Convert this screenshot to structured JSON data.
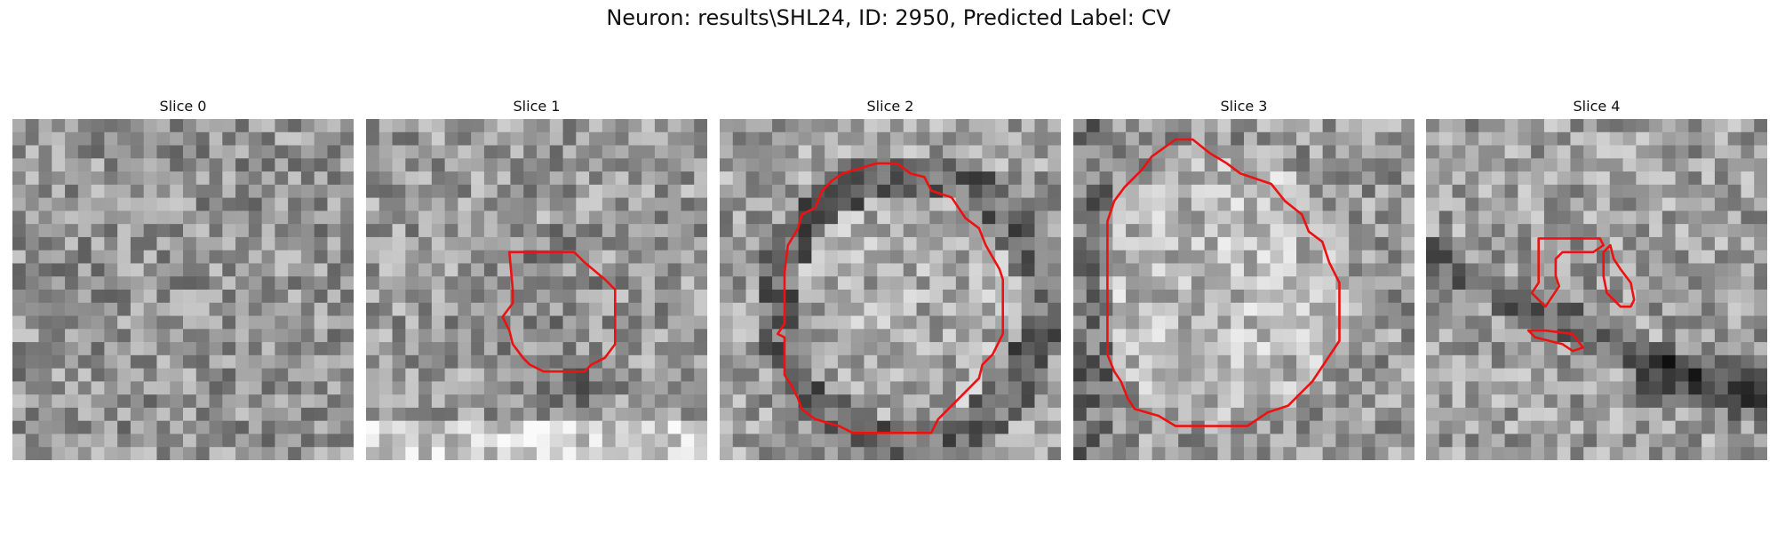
{
  "figure": {
    "title": "Neuron: results\\SHL24, ID: 2950, Predicted Label: CV"
  },
  "panels": [
    {
      "title": "Slice 0",
      "has_contour": false
    },
    {
      "title": "Slice 1",
      "has_contour": true
    },
    {
      "title": "Slice 2",
      "has_contour": true
    },
    {
      "title": "Slice 3",
      "has_contour": true
    },
    {
      "title": "Slice 4",
      "has_contour": true
    }
  ],
  "colors": {
    "contour": "#ee1111",
    "background": "#ffffff",
    "colormap": "gray"
  },
  "image_grid": {
    "rows": 26,
    "cols": 26
  }
}
